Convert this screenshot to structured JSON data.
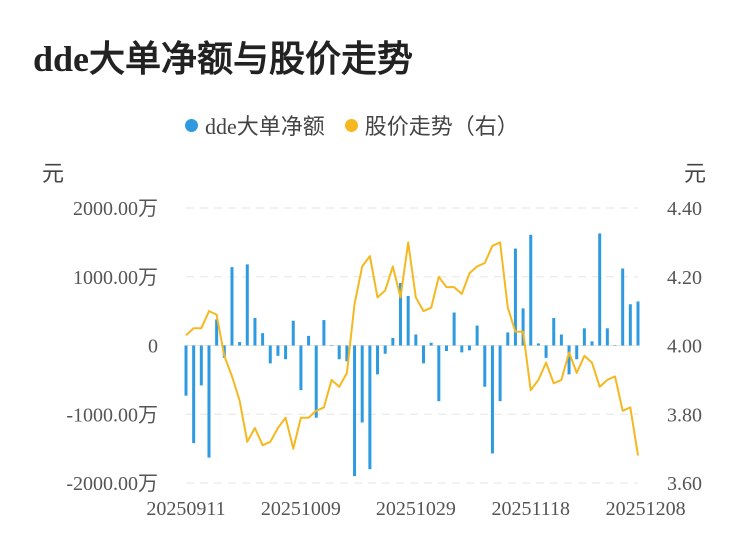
{
  "chart_data": {
    "type": "bar+line",
    "title": "dde大单净额与股价走势",
    "legend": [
      {
        "name": "dde大单净额",
        "color": "#2e9be0",
        "position": "top-center"
      },
      {
        "name": "股价走势（右）",
        "color": "#f5b820",
        "position": "top-center"
      }
    ],
    "left_unit": "元",
    "right_unit": "元",
    "left_axis": {
      "ylim": [
        -2000,
        2000
      ],
      "ticks": [
        -2000,
        -1000,
        0,
        1000,
        2000
      ],
      "tick_labels": [
        "-2000.00万",
        "-1000.00万",
        "0",
        "1000.00万",
        "2000.00万"
      ]
    },
    "right_axis": {
      "ylim": [
        3.6,
        4.4
      ],
      "ticks": [
        3.6,
        3.8,
        4.0,
        4.2,
        4.4
      ],
      "tick_labels": [
        "3.60",
        "3.80",
        "4.00",
        "4.20",
        "4.40"
      ]
    },
    "x_tick_labels": [
      "20250911",
      "20251009",
      "20251029",
      "20251118",
      "20251208"
    ],
    "x_tick_indices": [
      0,
      15,
      30,
      45,
      60
    ],
    "grid": true,
    "series": [
      {
        "name": "dde大单净额",
        "type": "bar",
        "color": "#2e9be0",
        "values": [
          -730,
          -1420,
          -580,
          -1630,
          380,
          -180,
          1140,
          50,
          1180,
          400,
          180,
          -260,
          -150,
          -200,
          360,
          -650,
          140,
          -1050,
          370,
          0,
          -200,
          -230,
          -1900,
          -1120,
          -1800,
          -420,
          -120,
          110,
          910,
          720,
          160,
          -260,
          40,
          -810,
          -80,
          480,
          -100,
          -70,
          290,
          -600,
          -1570,
          -810,
          190,
          1410,
          540,
          1610,
          30,
          -180,
          400,
          160,
          -420,
          -200,
          250,
          60,
          1630,
          250,
          0,
          1120,
          600,
          640
        ]
      },
      {
        "name": "股价走势（右）",
        "type": "line",
        "color": "#f5b820",
        "values": [
          4.03,
          4.05,
          4.05,
          4.1,
          4.09,
          3.97,
          3.91,
          3.84,
          3.72,
          3.76,
          3.71,
          3.72,
          3.76,
          3.79,
          3.7,
          3.79,
          3.79,
          3.81,
          3.82,
          3.9,
          3.88,
          3.92,
          4.12,
          4.23,
          4.26,
          4.14,
          4.16,
          4.23,
          4.14,
          4.3,
          4.14,
          4.1,
          4.11,
          4.2,
          4.17,
          4.17,
          4.15,
          4.21,
          4.23,
          4.24,
          4.29,
          4.3,
          4.11,
          4.04,
          4.04,
          3.87,
          3.9,
          3.95,
          3.89,
          3.9,
          3.98,
          3.92,
          3.97,
          3.95,
          3.88,
          3.9,
          3.91,
          3.81,
          3.82,
          3.68
        ]
      }
    ]
  }
}
